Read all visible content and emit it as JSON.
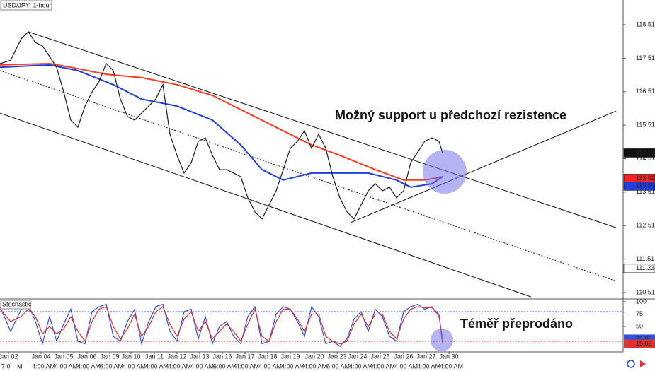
{
  "chart_data": [
    {
      "type": "price",
      "title": "USD/JPY: 1-hour",
      "x": [
        0,
        15,
        30,
        40,
        50,
        60,
        70,
        80,
        90,
        100,
        110,
        120,
        130,
        140,
        150,
        160,
        170,
        180,
        190,
        200,
        210,
        220,
        230,
        240,
        250,
        260,
        270,
        280,
        290,
        300,
        310,
        320,
        330,
        340,
        350,
        360,
        370,
        380,
        390,
        400,
        410,
        420,
        430,
        440,
        450,
        460,
        470,
        480,
        490,
        500,
        510,
        520,
        530,
        540,
        550,
        560,
        570,
        580,
        590,
        600,
        610,
        620,
        625
      ],
      "xlim": [
        0,
        880
      ],
      "series": [
        {
          "color": "#1a1a1a",
          "values": [
            117.35,
            117.45,
            118.09,
            118.3,
            117.98,
            117.88,
            117.56,
            117.24,
            116.5,
            115.66,
            115.45,
            116.08,
            116.5,
            116.82,
            117.35,
            117.14,
            116.29,
            115.77,
            115.66,
            115.87,
            116.08,
            116.29,
            116.72,
            115.24,
            114.61,
            114.08,
            114.39,
            115.03,
            115.13,
            114.61,
            114.18,
            114.18,
            114.08,
            113.97,
            113.34,
            112.92,
            112.71,
            113.13,
            113.55,
            114.18,
            114.82,
            115.03,
            115.34,
            114.82,
            115.24,
            114.82,
            113.97,
            113.34,
            112.92,
            112.71,
            113.13,
            113.55,
            113.76,
            113.55,
            113.66,
            113.34,
            113.55,
            114.39,
            114.71,
            115.03,
            115.13,
            115.03,
            114.68
          ]
        }
      ],
      "moving_averages": [
        {
          "color": "#ff3b1f",
          "x": [
            0,
            70,
            100,
            150,
            200,
            250,
            300,
            350,
            400,
            440,
            480,
            530,
            570,
            600,
            625
          ],
          "values": [
            117.31,
            117.35,
            117.24,
            117.03,
            116.93,
            116.72,
            116.4,
            115.87,
            115.34,
            114.92,
            114.61,
            114.18,
            113.87,
            113.87,
            113.97
          ]
        },
        {
          "color": "#1f3fdc",
          "x": [
            0,
            70,
            110,
            160,
            200,
            250,
            300,
            340,
            370,
            400,
            440,
            480,
            520,
            560,
            580,
            610,
            625
          ],
          "values": [
            117.24,
            117.31,
            117.14,
            116.72,
            116.29,
            116.08,
            115.66,
            114.92,
            114.18,
            113.87,
            114.08,
            114.08,
            114.08,
            113.87,
            113.66,
            113.76,
            113.97
          ]
        }
      ],
      "trendlines": [
        {
          "x": [
            40,
            870
          ],
          "values": [
            118.3,
            112.45
          ],
          "style": "solid"
        },
        {
          "x": [
            0,
            870
          ],
          "values": [
            117.14,
            110.85
          ],
          "style": "dotted"
        },
        {
          "x": [
            0,
            750
          ],
          "values": [
            115.87,
            110.38
          ],
          "style": "solid"
        },
        {
          "x": [
            495,
            870
          ],
          "values": [
            112.6,
            115.93
          ],
          "style": "solid"
        }
      ],
      "ylim": [
        110.34,
        119.25
      ],
      "yticks": [
        118.51,
        117.51,
        116.51,
        115.51,
        114.51,
        113.51,
        112.51,
        111.51,
        110.51
      ],
      "price_tags": [
        {
          "value": 114.68,
          "color": "#111111",
          "text_color": "#ffffff"
        },
        {
          "value": 113.92,
          "color": "#ff2020",
          "text_color": "#ffffff"
        },
        {
          "value": 113.69,
          "color": "#1f3fdc",
          "text_color": "#ffffff"
        },
        {
          "value": 111.23,
          "color": "#ffffff",
          "text_color": "#111111"
        }
      ],
      "annotation": "Možný support u předchozí rezistence",
      "xticks": [
        {
          "value": 12,
          "label": "Jan 02"
        },
        {
          "value": 58,
          "label": "Jan 04"
        },
        {
          "value": 90,
          "label": "Jan 05"
        },
        {
          "value": 123,
          "label": "Jan 06"
        },
        {
          "value": 155,
          "label": "Jan 09"
        },
        {
          "value": 185,
          "label": "Jan 10"
        },
        {
          "value": 218,
          "label": "Jan 11"
        },
        {
          "value": 250,
          "label": "Jan 12"
        },
        {
          "value": 282,
          "label": "Jan 13"
        },
        {
          "value": 314,
          "label": "Jan 16"
        },
        {
          "value": 346,
          "label": "Jan 17"
        },
        {
          "value": 378,
          "label": "Jan 18"
        },
        {
          "value": 410,
          "label": "Jan 19"
        },
        {
          "value": 444,
          "label": "Jan 20"
        },
        {
          "value": 476,
          "label": "Jan 23"
        },
        {
          "value": 505,
          "label": "Jan 24"
        },
        {
          "value": 537,
          "label": "Jan 25"
        },
        {
          "value": 570,
          "label": "Jan 26"
        },
        {
          "value": 602,
          "label": "Jan 27"
        },
        {
          "value": 634,
          "label": "Jan 30"
        }
      ],
      "time_labels": [
        "7:0",
        "M",
        "4:00 AM",
        "4:00 AM",
        "4:00 AM",
        "6:00 AM",
        "4:00 AM",
        "4:00 AM",
        "4:00 AM",
        "4:00 AM",
        "6:00 AM",
        "4:00 AM",
        "4:00 AM",
        "4:00 AM",
        "4:00 AM",
        "6:00 AM",
        "4:00 AM",
        "4:00 AM",
        "4:00 AM",
        "4:00 AM",
        "4:00 AM"
      ]
    },
    {
      "type": "oscillator",
      "title": "Stochastic",
      "x": [
        0,
        15,
        30,
        40,
        50,
        60,
        70,
        80,
        90,
        100,
        110,
        120,
        130,
        140,
        150,
        160,
        170,
        180,
        190,
        200,
        210,
        220,
        230,
        240,
        250,
        260,
        270,
        280,
        290,
        300,
        310,
        320,
        330,
        340,
        350,
        360,
        370,
        380,
        390,
        400,
        410,
        420,
        430,
        440,
        450,
        460,
        470,
        480,
        490,
        500,
        510,
        520,
        530,
        540,
        550,
        560,
        570,
        580,
        590,
        600,
        610,
        620,
        625
      ],
      "xlim": [
        0,
        880
      ],
      "series": [
        {
          "color": "#3050e0",
          "values": [
            90,
            40,
            85,
            95,
            60,
            15,
            70,
            20,
            55,
            85,
            20,
            15,
            80,
            90,
            95,
            30,
            20,
            60,
            85,
            15,
            60,
            90,
            95,
            40,
            20,
            80,
            85,
            25,
            70,
            15,
            50,
            60,
            30,
            15,
            70,
            90,
            15,
            20,
            75,
            90,
            85,
            60,
            30,
            90,
            70,
            15,
            20,
            10,
            25,
            65,
            80,
            40,
            85,
            70,
            30,
            20,
            80,
            90,
            95,
            85,
            90,
            70,
            25.06
          ]
        },
        {
          "color": "#e03030",
          "values": [
            85,
            60,
            70,
            85,
            70,
            35,
            50,
            35,
            45,
            70,
            40,
            20,
            60,
            85,
            90,
            50,
            25,
            45,
            75,
            30,
            50,
            80,
            90,
            55,
            30,
            65,
            80,
            40,
            60,
            25,
            40,
            55,
            40,
            20,
            55,
            85,
            30,
            20,
            60,
            85,
            85,
            65,
            40,
            75,
            75,
            30,
            20,
            15,
            20,
            55,
            75,
            50,
            75,
            75,
            40,
            25,
            65,
            85,
            90,
            88,
            88,
            75,
            15.03
          ]
        }
      ],
      "levels": [
        {
          "value": 80,
          "color": "#3050e0"
        },
        {
          "value": 20,
          "color": "#e03030"
        }
      ],
      "ylim": [
        0,
        100
      ],
      "yticks": [
        100,
        75,
        50
      ],
      "annotation": "Téměř přeprodáno"
    }
  ]
}
